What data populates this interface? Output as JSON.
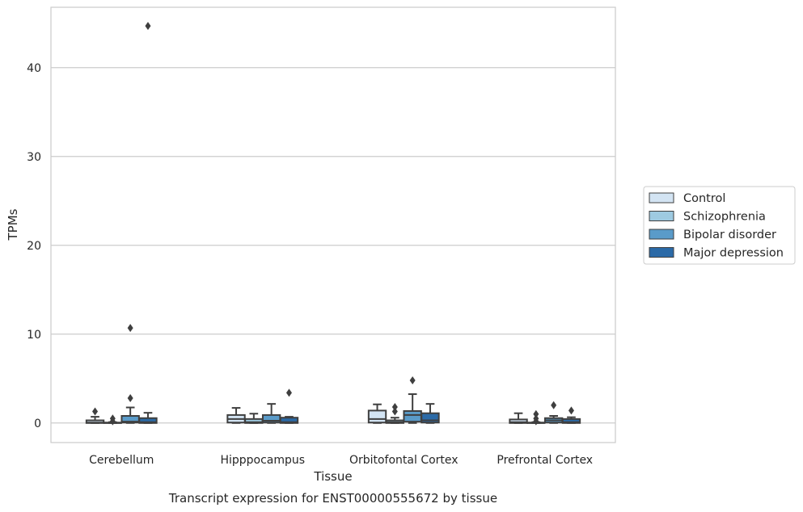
{
  "chart_data": {
    "type": "box",
    "title": "",
    "caption": "Transcript expression for ENST00000555672 by tissue",
    "xlabel": "Tissue",
    "ylabel": "TPMs",
    "ylim": [
      -2.2,
      46.8
    ],
    "yticks": [
      0,
      10,
      20,
      30,
      40
    ],
    "grid": "horizontal",
    "legend_placement": "right",
    "categories": [
      "Cerebellum",
      "Hipppocampus",
      "Orbitofontal Cortex",
      "Prefrontal Cortex"
    ],
    "series": [
      {
        "name": "Control",
        "color": "#d3e4f3",
        "boxes": [
          {
            "whislo": 0,
            "q1": 0,
            "med": 0.05,
            "q3": 0.3,
            "whishi": 0.7,
            "fliers": [
              1.3
            ]
          },
          {
            "whislo": 0,
            "q1": 0.05,
            "med": 0.45,
            "q3": 0.9,
            "whishi": 1.7,
            "fliers": []
          },
          {
            "whislo": 0,
            "q1": 0.05,
            "med": 0.45,
            "q3": 1.4,
            "whishi": 2.1,
            "fliers": []
          },
          {
            "whislo": 0,
            "q1": 0,
            "med": 0.1,
            "q3": 0.4,
            "whishi": 1.1,
            "fliers": []
          }
        ]
      },
      {
        "name": "Schizophrenia",
        "color": "#9ecae1",
        "boxes": [
          {
            "whislo": 0,
            "q1": 0,
            "med": 0,
            "q3": 0.05,
            "whishi": 0.1,
            "fliers": [
              0.2,
              0.5
            ]
          },
          {
            "whislo": 0,
            "q1": 0,
            "med": 0.1,
            "q3": 0.45,
            "whishi": 1.05,
            "fliers": []
          },
          {
            "whislo": 0,
            "q1": 0,
            "med": 0.1,
            "q3": 0.3,
            "whishi": 0.6,
            "fliers": [
              1.3,
              1.8
            ]
          },
          {
            "whislo": 0,
            "q1": 0,
            "med": 0,
            "q3": 0.05,
            "whishi": 0.1,
            "fliers": [
              0.2,
              0.5,
              1.0
            ]
          }
        ]
      },
      {
        "name": "Bipolar disorder",
        "color": "#5a9bc9",
        "boxes": [
          {
            "whislo": 0,
            "q1": 0.05,
            "med": 0.15,
            "q3": 0.8,
            "whishi": 1.75,
            "fliers": [
              2.8,
              10.7
            ]
          },
          {
            "whislo": 0,
            "q1": 0.05,
            "med": 0.25,
            "q3": 0.9,
            "whishi": 2.15,
            "fliers": []
          },
          {
            "whislo": 0,
            "q1": 0.15,
            "med": 0.9,
            "q3": 1.35,
            "whishi": 3.25,
            "fliers": [
              4.8
            ]
          },
          {
            "whislo": 0,
            "q1": 0.05,
            "med": 0.3,
            "q3": 0.55,
            "whishi": 0.8,
            "fliers": [
              2.0
            ]
          }
        ]
      },
      {
        "name": "Major depression",
        "color": "#2b6aa7",
        "boxes": [
          {
            "whislo": 0,
            "q1": 0,
            "med": 0.1,
            "q3": 0.55,
            "whishi": 1.15,
            "fliers": [
              44.7
            ]
          },
          {
            "whislo": 0,
            "q1": 0,
            "med": 0.1,
            "q3": 0.6,
            "whishi": 0.7,
            "fliers": [
              3.4
            ]
          },
          {
            "whislo": 0,
            "q1": 0.05,
            "med": 0.3,
            "q3": 1.1,
            "whishi": 2.15,
            "fliers": []
          },
          {
            "whislo": 0,
            "q1": 0,
            "med": 0.1,
            "q3": 0.45,
            "whishi": 0.65,
            "fliers": [
              1.4
            ]
          }
        ]
      }
    ]
  }
}
